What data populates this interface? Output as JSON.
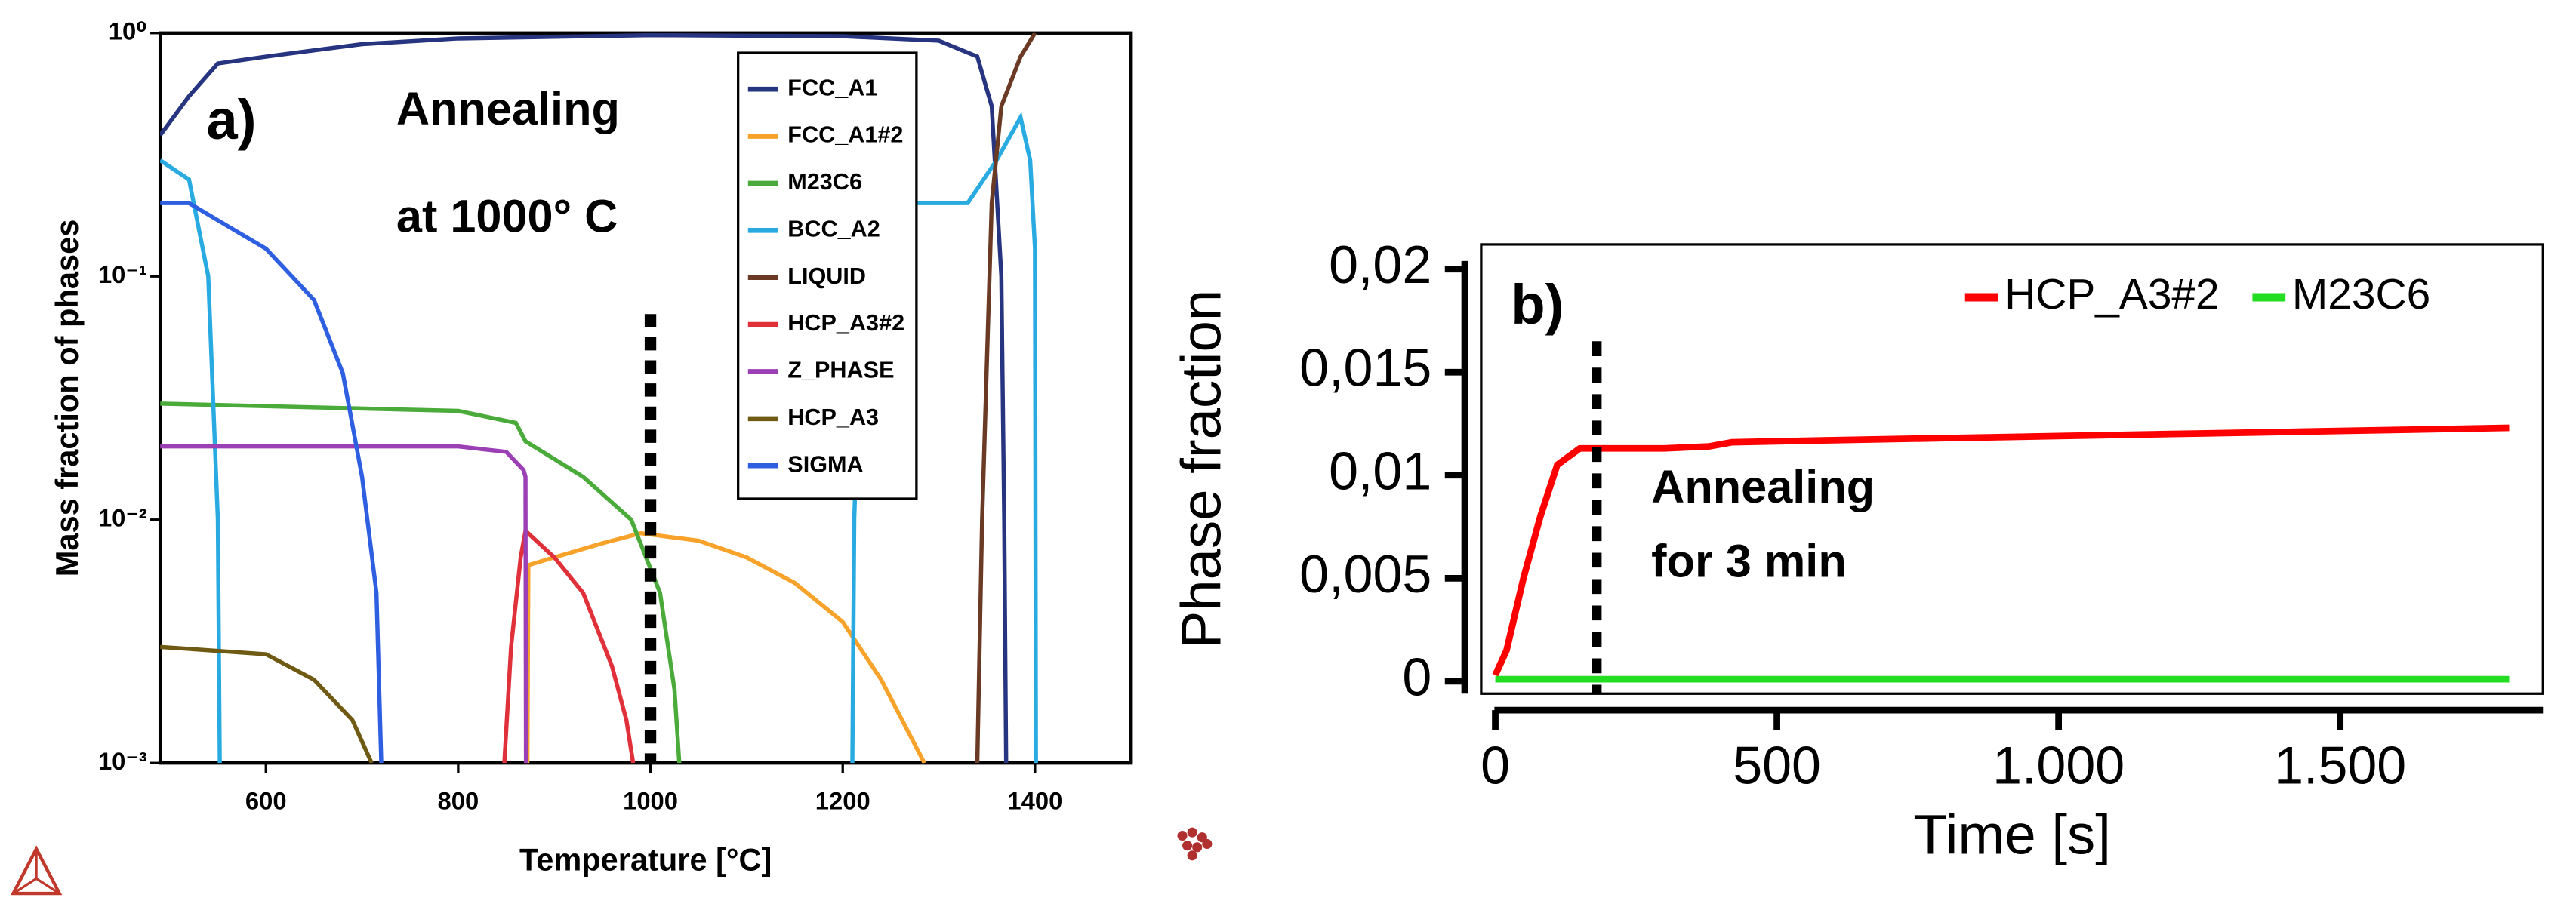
{
  "chart_data": [
    {
      "type": "line",
      "ylog": true,
      "xlabel": "Temperature [°C]",
      "ylabel": "Mass fraction of phases",
      "xlim": [
        490,
        1500
      ],
      "ylim": [
        0.001,
        1
      ],
      "xticks": [
        600,
        800,
        1000,
        1200,
        1400
      ],
      "yticks": [
        {
          "value": 0.001,
          "label": "10⁻³"
        },
        {
          "value": 0.01,
          "label": "10⁻²"
        },
        {
          "value": 0.1,
          "label": "10⁻¹"
        },
        {
          "value": 1,
          "label": "10⁰"
        }
      ],
      "legend": "top-right",
      "annotations": [
        "a)",
        "Annealing",
        "at 1000° C"
      ],
      "vline": 1000,
      "series": [
        {
          "name": "FCC_A1",
          "color": "#27347f",
          "x": [
            490,
            520,
            550,
            600,
            700,
            800,
            1000,
            1200,
            1300,
            1340,
            1355,
            1365,
            1368,
            1370
          ],
          "values": [
            0.38,
            0.55,
            0.75,
            0.8,
            0.9,
            0.95,
            0.98,
            0.97,
            0.93,
            0.8,
            0.5,
            0.1,
            0.01,
            0.001
          ]
        },
        {
          "name": "FCC_A1#2",
          "color": "#f7a32b",
          "x": [
            872,
            873,
            900,
            950,
            990,
            1050,
            1100,
            1150,
            1200,
            1240,
            1270,
            1285
          ],
          "values": [
            0.001,
            0.0065,
            0.007,
            0.008,
            0.0088,
            0.0082,
            0.007,
            0.0055,
            0.0038,
            0.0022,
            0.0013,
            0.001
          ]
        },
        {
          "name": "M23C6",
          "color": "#4aab3a",
          "x": [
            490,
            800,
            860,
            870,
            930,
            980,
            1010,
            1025,
            1030
          ],
          "values": [
            0.03,
            0.028,
            0.025,
            0.021,
            0.015,
            0.01,
            0.005,
            0.002,
            0.001
          ]
        },
        {
          "name": "BCC_A2",
          "color": "#29abe2",
          "x": [
            490,
            520,
            540,
            550,
            552,
            null,
            1210,
            1212,
            1220,
            1260,
            1330,
            1360,
            1385,
            1395,
            1400,
            1401
          ],
          "values": [
            0.3,
            0.25,
            0.1,
            0.01,
            0.001,
            null,
            0.001,
            0.01,
            0.1,
            0.2,
            0.2,
            0.3,
            0.45,
            0.3,
            0.13,
            0.001
          ]
        },
        {
          "name": "LIQUID",
          "color": "#6b3a24",
          "x": [
            1340,
            1345,
            1355,
            1365,
            1385,
            1400
          ],
          "values": [
            0.001,
            0.01,
            0.2,
            0.5,
            0.8,
            1
          ]
        },
        {
          "name": "HCP_A3#2",
          "color": "#e0303a",
          "x": [
            848,
            855,
            865,
            870,
            900,
            930,
            960,
            975,
            982
          ],
          "values": [
            0.001,
            0.003,
            0.007,
            0.009,
            0.007,
            0.005,
            0.0025,
            0.0015,
            0.001
          ]
        },
        {
          "name": "Z_PHASE",
          "color": "#9b3fb5",
          "x": [
            490,
            800,
            850,
            868,
            870,
            870.5
          ],
          "values": [
            0.02,
            0.02,
            0.019,
            0.016,
            0.015,
            0.001
          ]
        },
        {
          "name": "HCP_A3",
          "color": "#6f5a14",
          "x": [
            490,
            600,
            650,
            690,
            710
          ],
          "values": [
            0.003,
            0.0028,
            0.0022,
            0.0015,
            0.001
          ]
        },
        {
          "name": "SIGMA",
          "color": "#2e5fe0",
          "x": [
            490,
            520,
            550,
            600,
            650,
            680,
            700,
            715,
            720
          ],
          "values": [
            0.2,
            0.2,
            0.17,
            0.13,
            0.08,
            0.04,
            0.015,
            0.005,
            0.001
          ]
        }
      ]
    },
    {
      "type": "line",
      "ylog": false,
      "xlabel": "Time [s]",
      "ylabel": "Phase fraction",
      "xlim": [
        -25,
        1860
      ],
      "ylim": [
        -0.0006,
        0.0212
      ],
      "xticks": [
        0,
        500,
        {
          "value": 1000,
          "label": "1.000"
        },
        {
          "value": 1500,
          "label": "1.500"
        }
      ],
      "yticks": [
        0,
        {
          "value": 0.005,
          "label": "0,005"
        },
        {
          "value": 0.01,
          "label": "0,01"
        },
        {
          "value": 0.015,
          "label": "0,015"
        },
        {
          "value": 0.02,
          "label": "0,02"
        }
      ],
      "legend": "top-right",
      "annotations": [
        "b)",
        "Annealing",
        "for 3 min"
      ],
      "vline": 180,
      "series": [
        {
          "name": "HCP_A3#2",
          "color": "#ff0000",
          "x": [
            0,
            20,
            50,
            80,
            110,
            150,
            200,
            300,
            380,
            420,
            600,
            800,
            1000,
            1200,
            1400,
            1600,
            1800
          ],
          "values": [
            0.0003,
            0.0015,
            0.005,
            0.008,
            0.0105,
            0.0113,
            0.0113,
            0.0113,
            0.0114,
            0.0116,
            0.0117,
            0.0118,
            0.0119,
            0.012,
            0.0121,
            0.0122,
            0.0123
          ]
        },
        {
          "name": "M23C6",
          "color": "#22dd22",
          "x": [
            0,
            1800
          ],
          "values": [
            0.0001,
            0.0001
          ]
        }
      ]
    }
  ]
}
